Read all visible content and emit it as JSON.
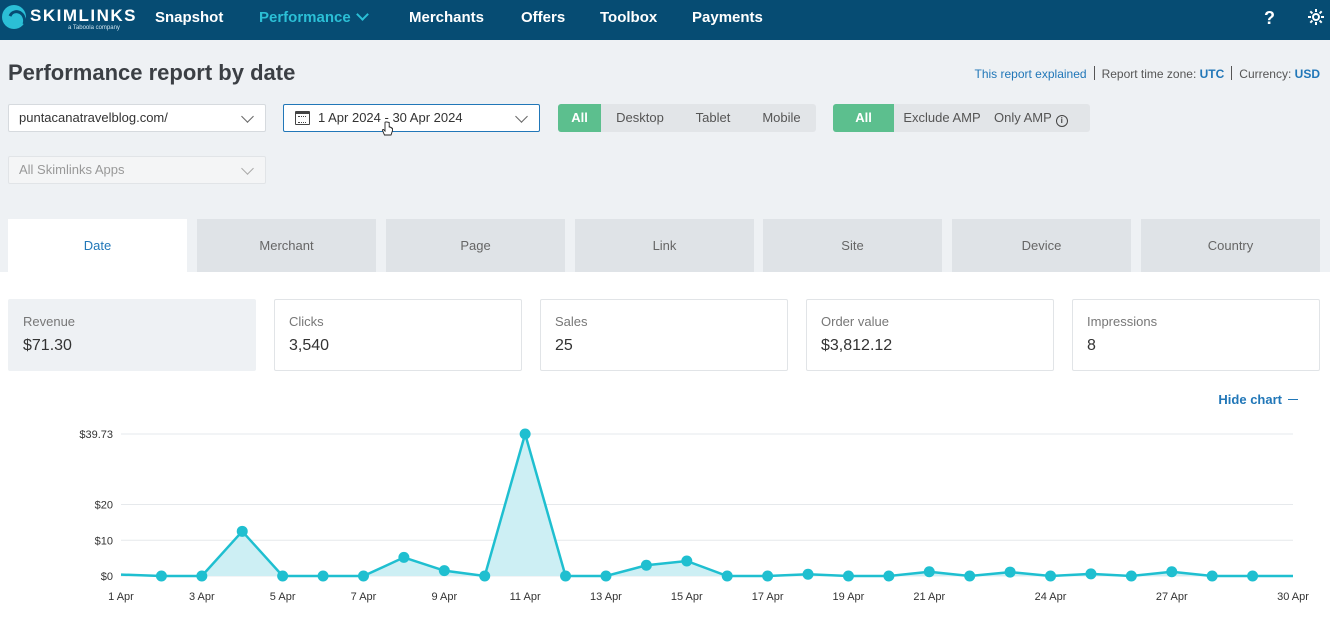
{
  "app": {
    "logo_text": "SKIMLINKS",
    "logo_sub": "a Taboola company",
    "nav": [
      {
        "label": "Snapshot",
        "active": false
      },
      {
        "label": "Performance",
        "active": true
      },
      {
        "label": "Merchants",
        "active": false
      },
      {
        "label": "Offers",
        "active": false
      },
      {
        "label": "Toolbox",
        "active": false
      },
      {
        "label": "Payments",
        "active": false
      }
    ],
    "help_icon": "?",
    "settings_icon": "gear-icon"
  },
  "header": {
    "title": "Performance report by date",
    "explained_link": "This report explained",
    "timezone_label": "Report time zone:",
    "timezone_value": "UTC",
    "currency_label": "Currency:",
    "currency_value": "USD"
  },
  "filters": {
    "site": "puntacanatravelblog.com/",
    "date_range": "1 Apr 2024 - 30 Apr 2024",
    "apps_placeholder": "All Skimlinks Apps",
    "device": {
      "options": [
        "All",
        "Desktop",
        "Tablet",
        "Mobile"
      ],
      "selected": "All"
    },
    "amp": {
      "options": [
        "All",
        "Exclude AMP",
        "Only AMP"
      ],
      "selected": "All"
    }
  },
  "tabs": [
    {
      "label": "Date",
      "active": true
    },
    {
      "label": "Merchant",
      "active": false
    },
    {
      "label": "Page",
      "active": false
    },
    {
      "label": "Link",
      "active": false
    },
    {
      "label": "Site",
      "active": false
    },
    {
      "label": "Device",
      "active": false
    },
    {
      "label": "Country",
      "active": false
    }
  ],
  "metrics": [
    {
      "label": "Revenue",
      "value": "$71.30",
      "active": true
    },
    {
      "label": "Clicks",
      "value": "3,540",
      "active": false
    },
    {
      "label": "Sales",
      "value": "25",
      "active": false
    },
    {
      "label": "Order value",
      "value": "$3,812.12",
      "active": false
    },
    {
      "label": "Impressions",
      "value": "8",
      "active": false
    }
  ],
  "hide_chart_label": "Hide chart",
  "chart_data": {
    "type": "area",
    "x": [
      "1 Apr",
      "2 Apr",
      "3 Apr",
      "4 Apr",
      "5 Apr",
      "6 Apr",
      "7 Apr",
      "8 Apr",
      "9 Apr",
      "10 Apr",
      "11 Apr",
      "12 Apr",
      "13 Apr",
      "14 Apr",
      "15 Apr",
      "16 Apr",
      "17 Apr",
      "18 Apr",
      "19 Apr",
      "20 Apr",
      "21 Apr",
      "22 Apr",
      "23 Apr",
      "24 Apr",
      "25 Apr",
      "26 Apr",
      "27 Apr",
      "28 Apr",
      "29 Apr",
      "30 Apr"
    ],
    "x_tick_labels": [
      "1 Apr",
      "3 Apr",
      "5 Apr",
      "7 Apr",
      "9 Apr",
      "11 Apr",
      "13 Apr",
      "15 Apr",
      "17 Apr",
      "19 Apr",
      "21 Apr",
      "24 Apr",
      "27 Apr",
      "30 Apr"
    ],
    "series": [
      {
        "values": [
          0.4,
          0.0,
          0.0,
          12.5,
          0.0,
          0.0,
          0.0,
          5.2,
          1.5,
          0.0,
          39.73,
          0.0,
          0.0,
          3.0,
          4.2,
          0.0,
          0.0,
          0.5,
          0.0,
          0.0,
          1.2,
          0.0,
          1.1,
          0.0,
          0.6,
          0.0,
          1.2,
          0.0,
          0.0,
          0.0
        ]
      }
    ],
    "y_ticks": [
      0,
      10,
      20,
      39.73
    ],
    "y_tick_labels": [
      "$0",
      "$10",
      "$20",
      "$39.73"
    ],
    "ylim": [
      0,
      39.73
    ],
    "grid": true,
    "color": "#1fbfd0",
    "fill_color": "#cdeff4"
  }
}
